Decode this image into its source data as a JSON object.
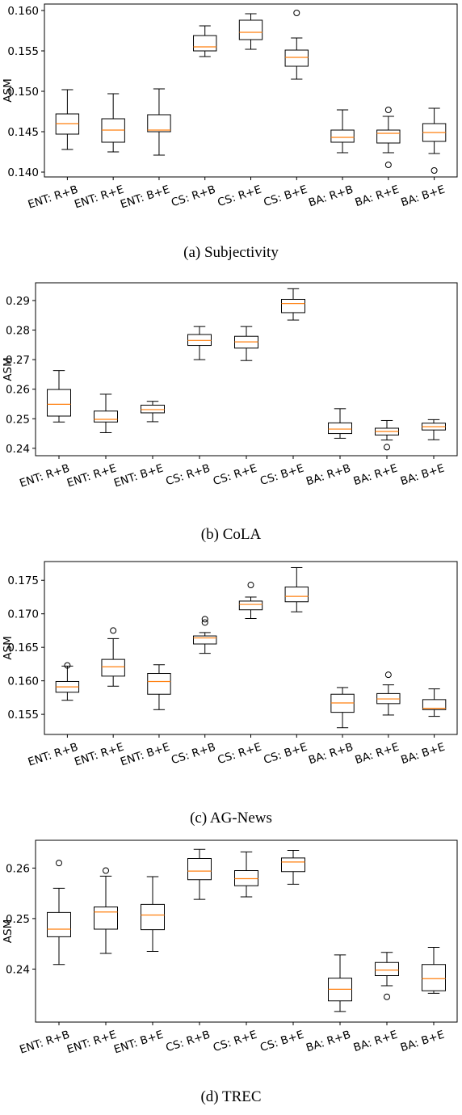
{
  "chart_data": [
    {
      "type": "box",
      "caption": "(a) Subjectivity",
      "ylabel": "ASM",
      "ylim": [
        0.1394,
        0.1608
      ],
      "yticks": [
        0.14,
        0.145,
        0.15,
        0.155,
        0.16
      ],
      "ytick_labels": [
        "0.140",
        "0.145",
        "0.150",
        "0.155",
        "0.160"
      ],
      "categories": [
        "ENT: R+B",
        "ENT: R+E",
        "ENT: B+E",
        "CS: R+B",
        "CS: R+E",
        "CS: B+E",
        "BA: R+B",
        "BA: R+E",
        "BA: B+E"
      ],
      "boxes": [
        {
          "whislo": 0.1428,
          "q1": 0.1447,
          "med": 0.146,
          "q3": 0.1472,
          "whishi": 0.1502,
          "fliers": []
        },
        {
          "whislo": 0.1425,
          "q1": 0.1437,
          "med": 0.1452,
          "q3": 0.1466,
          "whishi": 0.1497,
          "fliers": []
        },
        {
          "whislo": 0.1421,
          "q1": 0.145,
          "med": 0.1452,
          "q3": 0.1471,
          "whishi": 0.1503,
          "fliers": []
        },
        {
          "whislo": 0.1543,
          "q1": 0.155,
          "med": 0.1555,
          "q3": 0.1569,
          "whishi": 0.1581,
          "fliers": []
        },
        {
          "whislo": 0.1552,
          "q1": 0.1564,
          "med": 0.1573,
          "q3": 0.1588,
          "whishi": 0.1596,
          "fliers": []
        },
        {
          "whislo": 0.1515,
          "q1": 0.1531,
          "med": 0.1542,
          "q3": 0.1551,
          "whishi": 0.1566,
          "fliers": [
            0.1597
          ]
        },
        {
          "whislo": 0.1424,
          "q1": 0.1437,
          "med": 0.1443,
          "q3": 0.1452,
          "whishi": 0.1477,
          "fliers": []
        },
        {
          "whislo": 0.1424,
          "q1": 0.1436,
          "med": 0.1448,
          "q3": 0.1452,
          "whishi": 0.1469,
          "fliers": [
            0.1477,
            0.1409
          ]
        },
        {
          "whislo": 0.1423,
          "q1": 0.1438,
          "med": 0.1449,
          "q3": 0.146,
          "whishi": 0.1479,
          "fliers": [
            0.1402
          ]
        }
      ]
    },
    {
      "type": "box",
      "caption": "(b) CoLA",
      "ylabel": "ASM",
      "ylim": [
        0.2375,
        0.296
      ],
      "yticks": [
        0.24,
        0.25,
        0.26,
        0.27,
        0.28,
        0.29
      ],
      "ytick_labels": [
        "0.24",
        "0.25",
        "0.26",
        "0.27",
        "0.28",
        "0.29"
      ],
      "categories": [
        "ENT: R+B",
        "ENT: R+E",
        "ENT: B+E",
        "CS: R+B",
        "CS: R+E",
        "CS: B+E",
        "BA: R+B",
        "BA: R+E",
        "BA: B+E"
      ],
      "boxes": [
        {
          "whislo": 0.2489,
          "q1": 0.2509,
          "med": 0.2549,
          "q3": 0.2599,
          "whishi": 0.2663,
          "fliers": []
        },
        {
          "whislo": 0.2453,
          "q1": 0.2489,
          "med": 0.2498,
          "q3": 0.2526,
          "whishi": 0.2583,
          "fliers": []
        },
        {
          "whislo": 0.249,
          "q1": 0.252,
          "med": 0.2531,
          "q3": 0.2546,
          "whishi": 0.2559,
          "fliers": []
        },
        {
          "whislo": 0.27,
          "q1": 0.2748,
          "med": 0.2765,
          "q3": 0.2785,
          "whishi": 0.2812,
          "fliers": []
        },
        {
          "whislo": 0.2697,
          "q1": 0.2739,
          "med": 0.276,
          "q3": 0.2779,
          "whishi": 0.2812,
          "fliers": []
        },
        {
          "whislo": 0.2834,
          "q1": 0.2859,
          "med": 0.289,
          "q3": 0.2904,
          "whishi": 0.294,
          "fliers": []
        },
        {
          "whislo": 0.2434,
          "q1": 0.245,
          "med": 0.2465,
          "q3": 0.2486,
          "whishi": 0.2534,
          "fliers": []
        },
        {
          "whislo": 0.2428,
          "q1": 0.2445,
          "med": 0.2457,
          "q3": 0.2468,
          "whishi": 0.2494,
          "fliers": [
            0.2404
          ]
        },
        {
          "whislo": 0.2429,
          "q1": 0.2462,
          "med": 0.2473,
          "q3": 0.2485,
          "whishi": 0.2497,
          "fliers": []
        }
      ]
    },
    {
      "type": "box",
      "caption": "(c) AG-News",
      "ylabel": "ASM",
      "ylim": [
        0.152,
        0.1778
      ],
      "yticks": [
        0.155,
        0.16,
        0.165,
        0.17,
        0.175
      ],
      "ytick_labels": [
        "0.155",
        "0.160",
        "0.165",
        "0.170",
        "0.175"
      ],
      "categories": [
        "ENT: R+B",
        "ENT: R+E",
        "ENT: B+E",
        "CS: R+B",
        "CS: R+E",
        "CS: B+E",
        "BA: R+B",
        "BA: R+E",
        "BA: B+E"
      ],
      "boxes": [
        {
          "whislo": 0.1571,
          "q1": 0.1583,
          "med": 0.1591,
          "q3": 0.1599,
          "whishi": 0.1622,
          "fliers": [
            0.1623
          ]
        },
        {
          "whislo": 0.1592,
          "q1": 0.1607,
          "med": 0.1621,
          "q3": 0.1632,
          "whishi": 0.1663,
          "fliers": [
            0.1675
          ]
        },
        {
          "whislo": 0.1557,
          "q1": 0.158,
          "med": 0.1599,
          "q3": 0.1611,
          "whishi": 0.1624,
          "fliers": []
        },
        {
          "whislo": 0.1641,
          "q1": 0.1655,
          "med": 0.1664,
          "q3": 0.1667,
          "whishi": 0.1672,
          "fliers": [
            0.1687,
            0.1692
          ]
        },
        {
          "whislo": 0.1693,
          "q1": 0.1706,
          "med": 0.1714,
          "q3": 0.1719,
          "whishi": 0.1725,
          "fliers": [
            0.1743
          ]
        },
        {
          "whislo": 0.1703,
          "q1": 0.1718,
          "med": 0.1726,
          "q3": 0.174,
          "whishi": 0.1769,
          "fliers": []
        },
        {
          "whislo": 0.153,
          "q1": 0.1553,
          "med": 0.1567,
          "q3": 0.158,
          "whishi": 0.159,
          "fliers": []
        },
        {
          "whislo": 0.1549,
          "q1": 0.1566,
          "med": 0.1573,
          "q3": 0.1581,
          "whishi": 0.1594,
          "fliers": [
            0.1609
          ]
        },
        {
          "whislo": 0.1547,
          "q1": 0.1557,
          "med": 0.1559,
          "q3": 0.1572,
          "whishi": 0.1588,
          "fliers": []
        }
      ]
    },
    {
      "type": "box",
      "caption": "(d) TREC",
      "ylabel": "ASM",
      "ylim": [
        0.2295,
        0.2655
      ],
      "yticks": [
        0.24,
        0.25,
        0.26
      ],
      "ytick_labels": [
        "0.24",
        "0.25",
        "0.26"
      ],
      "categories": [
        "ENT: R+B",
        "ENT: R+E",
        "ENT: B+E",
        "CS: R+B",
        "CS: R+E",
        "CS: B+E",
        "BA: R+B",
        "BA: R+E",
        "BA: B+E"
      ],
      "boxes": [
        {
          "whislo": 0.2409,
          "q1": 0.2464,
          "med": 0.2479,
          "q3": 0.2512,
          "whishi": 0.256,
          "fliers": [
            0.261
          ]
        },
        {
          "whislo": 0.2431,
          "q1": 0.2479,
          "med": 0.2513,
          "q3": 0.2523,
          "whishi": 0.2584,
          "fliers": [
            0.2595
          ]
        },
        {
          "whislo": 0.2435,
          "q1": 0.2478,
          "med": 0.2507,
          "q3": 0.2528,
          "whishi": 0.2583,
          "fliers": []
        },
        {
          "whislo": 0.2538,
          "q1": 0.2577,
          "med": 0.2594,
          "q3": 0.2619,
          "whishi": 0.2637,
          "fliers": []
        },
        {
          "whislo": 0.2543,
          "q1": 0.2565,
          "med": 0.2579,
          "q3": 0.2595,
          "whishi": 0.2632,
          "fliers": []
        },
        {
          "whislo": 0.2568,
          "q1": 0.2593,
          "med": 0.2612,
          "q3": 0.262,
          "whishi": 0.2635,
          "fliers": []
        },
        {
          "whislo": 0.2316,
          "q1": 0.2337,
          "med": 0.236,
          "q3": 0.2382,
          "whishi": 0.2428,
          "fliers": []
        },
        {
          "whislo": 0.2367,
          "q1": 0.2387,
          "med": 0.2398,
          "q3": 0.2413,
          "whishi": 0.2433,
          "fliers": [
            0.2345
          ]
        },
        {
          "whislo": 0.2352,
          "q1": 0.2357,
          "med": 0.2381,
          "q3": 0.2409,
          "whishi": 0.2443,
          "fliers": []
        }
      ]
    }
  ],
  "colors": {
    "box": "#000000",
    "median": "#ff7f0e",
    "axis": "#000000",
    "background": "#ffffff"
  }
}
